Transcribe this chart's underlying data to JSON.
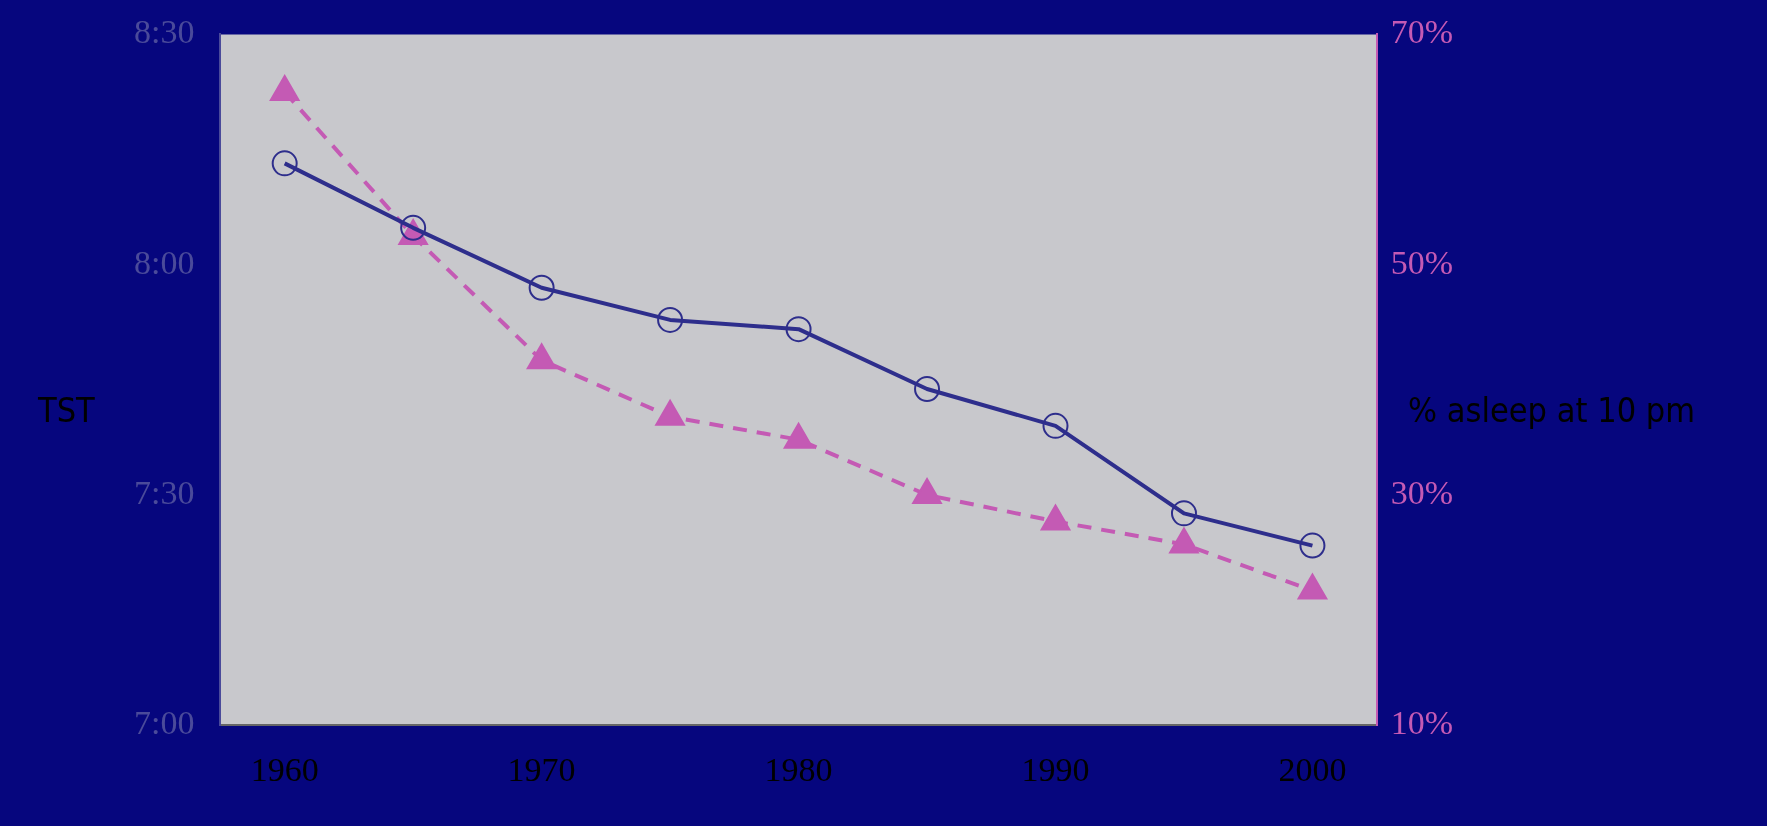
{
  "chart_data": {
    "type": "line",
    "ylabel": "TST",
    "y2label": "% asleep at 10 pm",
    "x": [
      1960,
      1965,
      1970,
      1975,
      1980,
      1985,
      1990,
      1995,
      2000
    ],
    "series": [
      {
        "color": "#2e2e8c",
        "values": [
          8.22,
          8.08,
          7.95,
          7.88,
          7.86,
          7.73,
          7.65,
          7.46,
          7.39
        ],
        "marker": "circle",
        "line_style": "solid"
      },
      {
        "color": "#c45ab4",
        "axis": "y2",
        "values": [
          65,
          52.5,
          41.7,
          36.8,
          34.8,
          30,
          27.7,
          25.7,
          21.7
        ],
        "marker": "triangle",
        "line_style": "dashed"
      }
    ],
    "xlim": [
      1957.5,
      2002.5
    ],
    "xticks": [
      1960,
      1970,
      1980,
      1990,
      2000
    ],
    "ylim": [
      7,
      8.5
    ],
    "yticks": [
      {
        "value": 7,
        "label": "7:00"
      },
      {
        "value": 7.5,
        "label": "7:30"
      },
      {
        "value": 8,
        "label": "8:00"
      },
      {
        "value": 8.5,
        "label": "8:30"
      }
    ],
    "y2lim": [
      10,
      70
    ],
    "y2ticks": [
      {
        "value": 10,
        "label": "10%"
      },
      {
        "value": 30,
        "label": "30%"
      },
      {
        "value": 50,
        "label": "50%"
      },
      {
        "value": 70,
        "label": "70%"
      }
    ],
    "grid": false,
    "legend": false
  }
}
